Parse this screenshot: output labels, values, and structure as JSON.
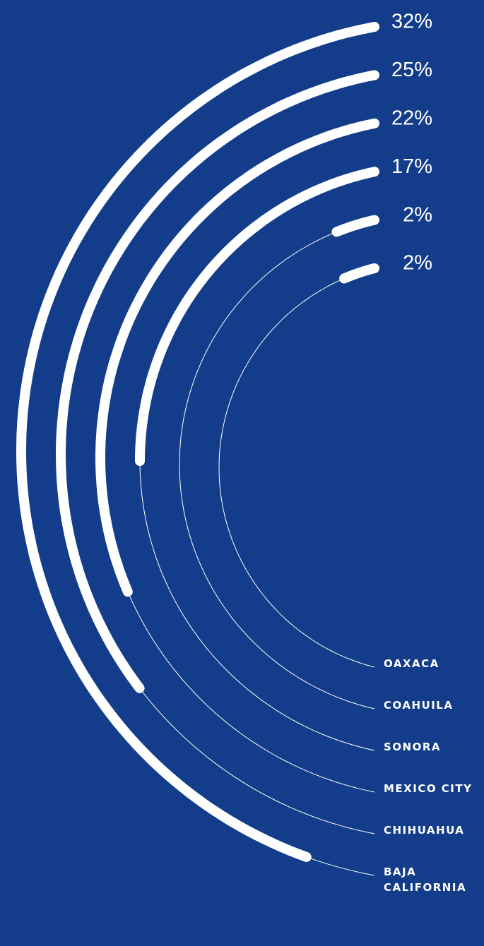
{
  "chart_data": {
    "type": "radial-bar",
    "categories": [
      "BAJA CALIFORNIA",
      "CHIHUAHUA",
      "MEXICO CITY",
      "SONORA",
      "COAHUILA",
      "OAXACA"
    ],
    "values": [
      32,
      25,
      22,
      17,
      2,
      2
    ],
    "value_labels": [
      "32%",
      "25%",
      "22%",
      "17%",
      "2%",
      "2%"
    ],
    "ylim": [
      0,
      34
    ],
    "color": "#ffffff"
  }
}
